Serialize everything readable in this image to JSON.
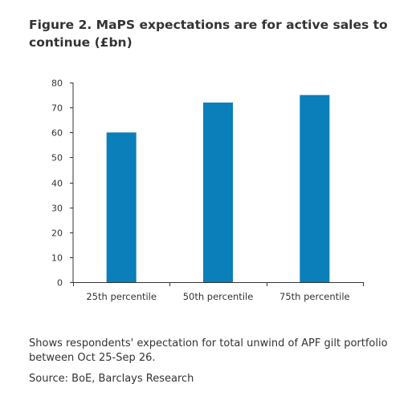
{
  "figure": {
    "title": "Figure 2. MaPS expectations are for active sales to continue (£bn)",
    "note": "Shows respondents' expectation for total unwind of APF gilt portfolio between Oct 25-Sep 26.",
    "source": "Source: BoE, Barclays Research"
  },
  "colors": {
    "bar": "#0a7fb9",
    "axis": "#333333",
    "text": "#333333"
  },
  "chart_data": {
    "type": "bar",
    "categories": [
      "25th percentile",
      "50th percentile",
      "75th percentile"
    ],
    "values": [
      60,
      72,
      75
    ],
    "y_ticks": [
      "0",
      "10",
      "20",
      "30",
      "40",
      "50",
      "60",
      "70",
      "80"
    ],
    "ylim": [
      0,
      80
    ],
    "xlabel": "",
    "ylabel": "",
    "grid": false,
    "legend": "none"
  }
}
